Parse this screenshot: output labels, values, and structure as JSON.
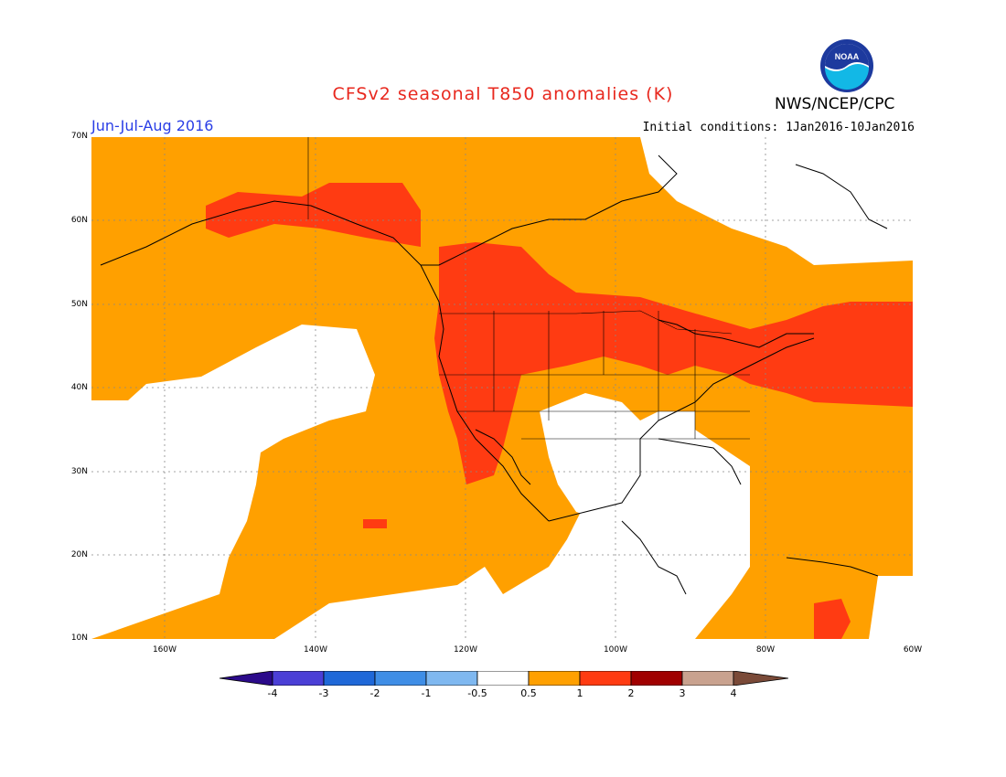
{
  "title": "CFSv2 seasonal T850 anomalies (K)",
  "agency": "NWS/NCEP/CPC",
  "logo_text": "NOAA",
  "season": "Jun-Jul-Aug 2016",
  "initial_conditions": "Initial conditions: 1Jan2016-10Jan2016",
  "lat_labels": [
    "70N",
    "60N",
    "50N",
    "40N",
    "30N",
    "20N",
    "10N"
  ],
  "lon_labels": [
    "160W",
    "140W",
    "120W",
    "100W",
    "80W",
    "60W"
  ],
  "colorbar": {
    "labels": [
      "-4",
      "-3",
      "-2",
      "-1",
      "-0.5",
      "0.5",
      "1",
      "2",
      "3",
      "4"
    ],
    "colors": [
      "#2b0a8a",
      "#4b3fd6",
      "#1f68d8",
      "#3f8ee6",
      "#7fb8f0",
      "#ffffff",
      "#ffa000",
      "#ff3b12",
      "#a00000",
      "#c9a28f",
      "#7a4a38"
    ]
  },
  "anomaly_colors": {
    "weak_positive": "#ffa000",
    "moderate_positive": "#ff3b12"
  }
}
